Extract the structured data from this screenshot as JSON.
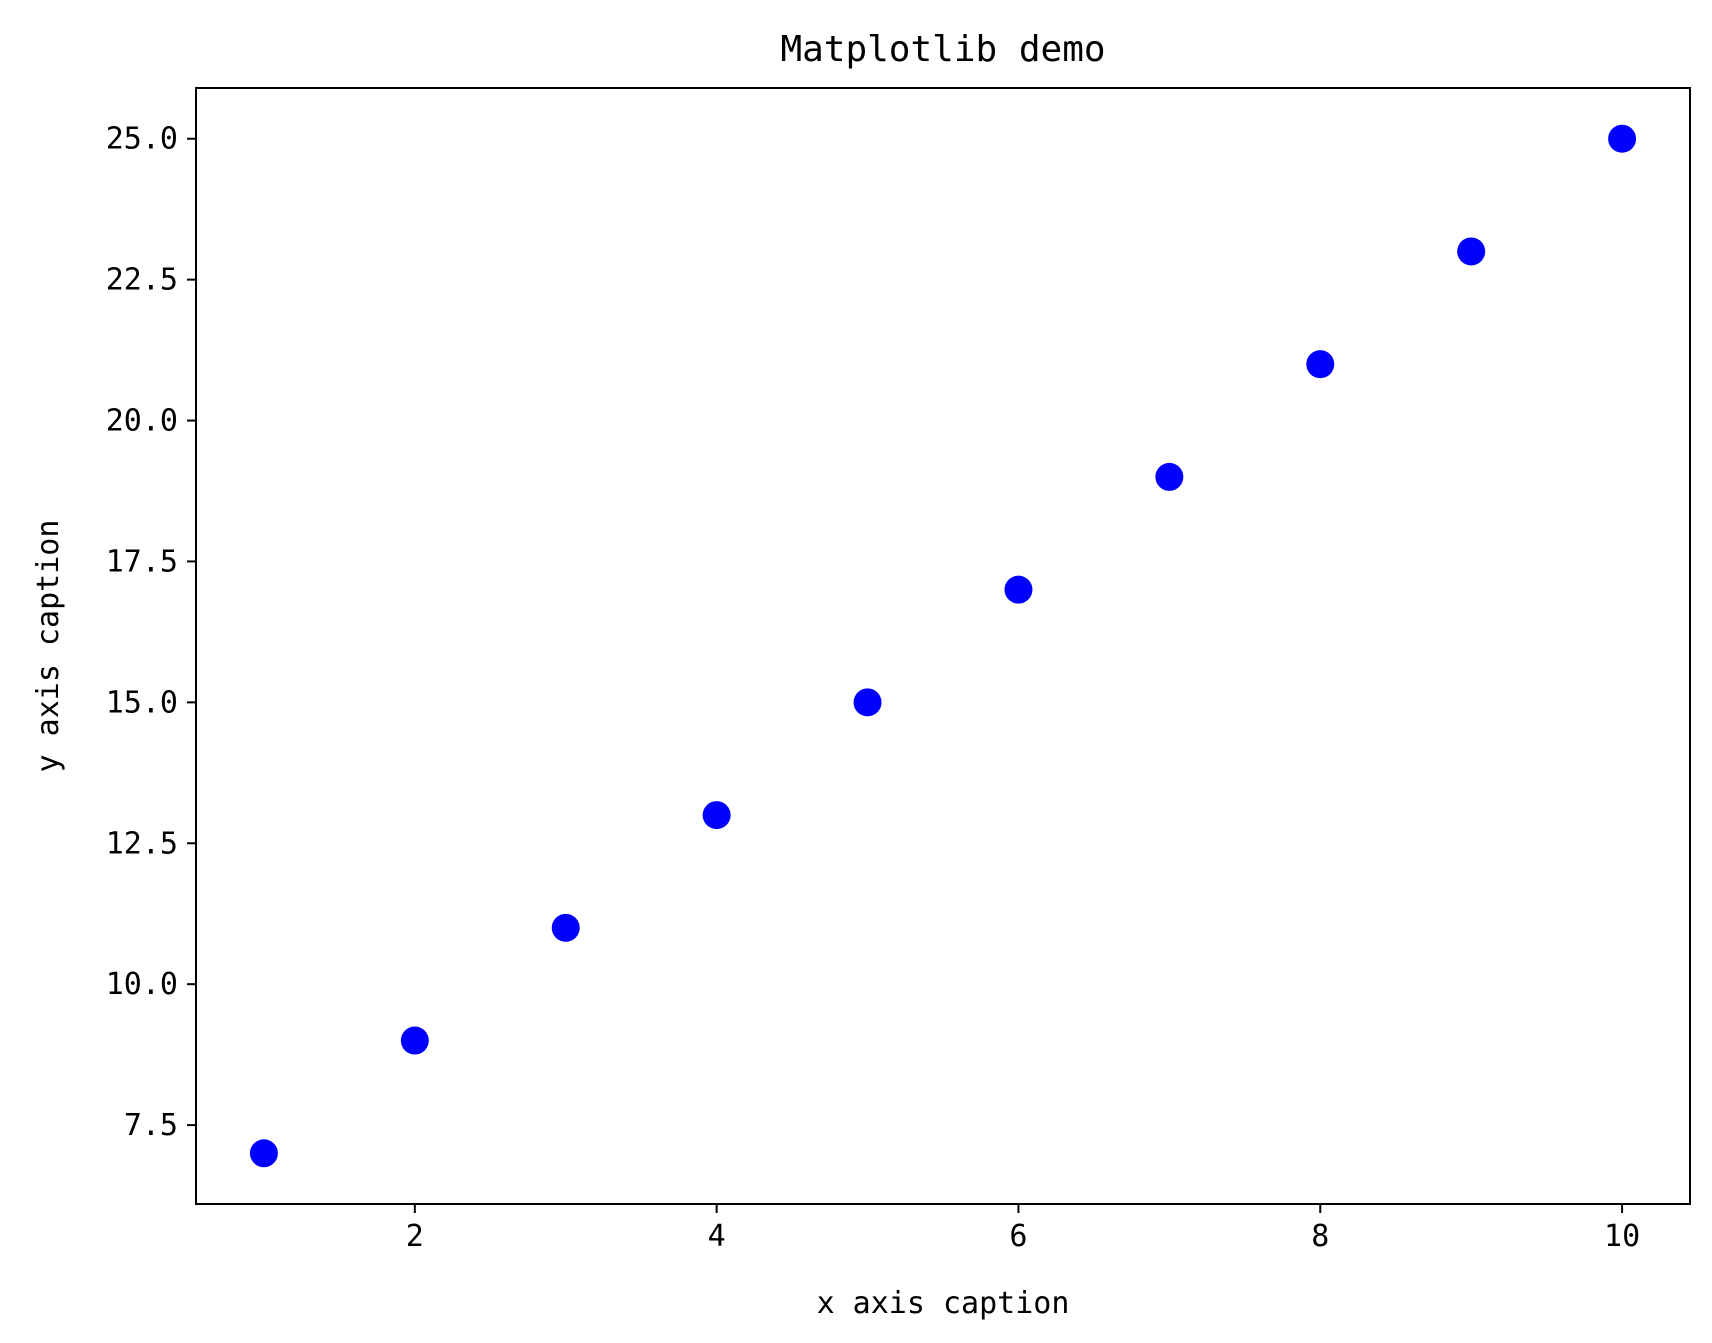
{
  "chart_data": {
    "type": "scatter",
    "title": "Matplotlib demo",
    "xlabel": "x axis caption",
    "ylabel": "y axis caption",
    "x": [
      1,
      2,
      3,
      4,
      5,
      6,
      7,
      8,
      9,
      10
    ],
    "y": [
      7,
      9,
      11,
      13,
      15,
      17,
      19,
      21,
      23,
      25
    ],
    "xlim": [
      0.55,
      10.45
    ],
    "ylim": [
      6.1,
      25.9
    ],
    "xticks": [
      2,
      4,
      6,
      8,
      10
    ],
    "xtick_labels": [
      "2",
      "4",
      "6",
      "8",
      "10"
    ],
    "yticks": [
      7.5,
      10.0,
      12.5,
      15.0,
      17.5,
      20.0,
      22.5,
      25.0
    ],
    "ytick_labels": [
      "7.5",
      "10.0",
      "12.5",
      "15.0",
      "17.5",
      "20.0",
      "22.5",
      "25.0"
    ],
    "grid": false,
    "marker_color": "#0000ff"
  }
}
